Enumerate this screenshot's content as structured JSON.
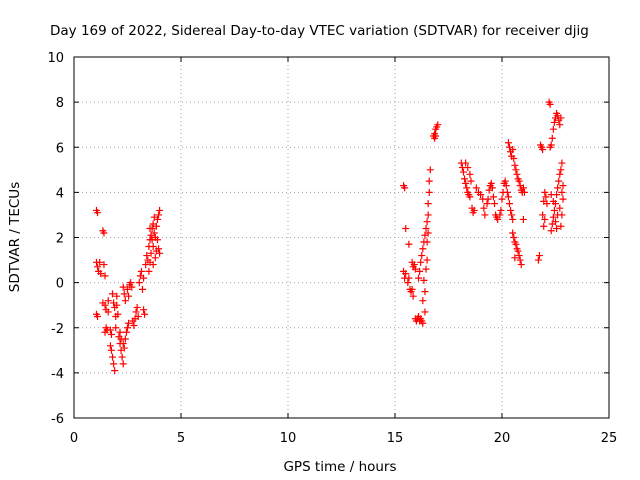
{
  "chart_data": {
    "type": "scatter",
    "title": "Day 169 of 2022, Sidereal Day-to-day VTEC variation (SDTVAR) for receiver djig",
    "xlabel": "GPS time / hours",
    "ylabel": "SDTVAR / TECUs",
    "xlim": [
      0,
      25
    ],
    "ylim": [
      -6,
      10
    ],
    "xticks": [
      "0",
      "5",
      "10",
      "15",
      "20",
      "25"
    ],
    "yticks": [
      "-6",
      "-4",
      "-2",
      "0",
      "2",
      "4",
      "6",
      "8",
      "10"
    ],
    "grid": true,
    "marker": "plus",
    "color": "#ff0000",
    "series": [
      {
        "points": [
          [
            1.05,
            3.2
          ],
          [
            1.1,
            3.1
          ],
          [
            1.05,
            0.9
          ],
          [
            1.1,
            0.7
          ],
          [
            1.15,
            0.5
          ],
          [
            1.2,
            0.9
          ],
          [
            1.25,
            0.4
          ],
          [
            1.05,
            -1.4
          ],
          [
            1.1,
            -1.5
          ],
          [
            1.35,
            2.3
          ],
          [
            1.4,
            2.2
          ],
          [
            1.4,
            0.8
          ],
          [
            1.45,
            0.3
          ],
          [
            1.35,
            -0.9
          ],
          [
            1.45,
            -1.0
          ],
          [
            1.5,
            -1.2
          ],
          [
            1.5,
            -2.0
          ],
          [
            1.55,
            -2.1
          ],
          [
            1.45,
            -2.2
          ],
          [
            1.6,
            -0.8
          ],
          [
            1.6,
            -1.3
          ],
          [
            1.7,
            -2.1
          ],
          [
            1.75,
            -2.3
          ],
          [
            1.7,
            -2.8
          ],
          [
            1.75,
            -3.0
          ],
          [
            1.8,
            -3.3
          ],
          [
            1.85,
            -3.6
          ],
          [
            1.9,
            -3.9
          ],
          [
            1.8,
            -0.5
          ],
          [
            1.85,
            -0.9
          ],
          [
            1.9,
            -1.1
          ],
          [
            1.95,
            -1.5
          ],
          [
            2.0,
            -1.0
          ],
          [
            2.05,
            -1.4
          ],
          [
            1.95,
            -2.0
          ],
          [
            2.0,
            -0.6
          ],
          [
            2.1,
            -2.4
          ],
          [
            2.15,
            -2.7
          ],
          [
            2.2,
            -3.0
          ],
          [
            2.25,
            -3.3
          ],
          [
            2.3,
            -3.6
          ],
          [
            2.15,
            -2.2
          ],
          [
            2.2,
            -2.5
          ],
          [
            2.3,
            -2.7
          ],
          [
            2.35,
            -2.9
          ],
          [
            2.4,
            -2.5
          ],
          [
            2.45,
            -2.2
          ],
          [
            2.5,
            -2.0
          ],
          [
            2.55,
            -1.8
          ],
          [
            2.3,
            -0.2
          ],
          [
            2.35,
            -0.5
          ],
          [
            2.4,
            -0.8
          ],
          [
            2.5,
            -0.3
          ],
          [
            2.55,
            -0.6
          ],
          [
            2.6,
            -0.1
          ],
          [
            2.65,
            0.0
          ],
          [
            2.7,
            -0.2
          ],
          [
            2.75,
            -1.7
          ],
          [
            2.8,
            -1.9
          ],
          [
            2.85,
            -1.6
          ],
          [
            2.9,
            -1.3
          ],
          [
            2.95,
            -1.1
          ],
          [
            3.0,
            -1.5
          ],
          [
            3.05,
            0.0
          ],
          [
            3.1,
            0.3
          ],
          [
            3.15,
            0.5
          ],
          [
            3.2,
            -0.3
          ],
          [
            3.25,
            0.2
          ],
          [
            3.25,
            -1.2
          ],
          [
            3.3,
            -1.4
          ],
          [
            3.35,
            0.8
          ],
          [
            3.4,
            1.2
          ],
          [
            3.45,
            1.0
          ],
          [
            3.5,
            0.5
          ],
          [
            3.55,
            0.9
          ],
          [
            3.5,
            1.6
          ],
          [
            3.55,
            1.9
          ],
          [
            3.6,
            2.1
          ],
          [
            3.65,
            2.4
          ],
          [
            3.7,
            2.6
          ],
          [
            3.75,
            2.2
          ],
          [
            3.6,
            1.3
          ],
          [
            3.7,
            1.6
          ],
          [
            3.8,
            2.0
          ],
          [
            3.85,
            2.5
          ],
          [
            3.9,
            2.8
          ],
          [
            3.95,
            3.0
          ],
          [
            4.0,
            3.2
          ],
          [
            3.9,
            1.9
          ],
          [
            3.95,
            1.5
          ],
          [
            4.0,
            1.3
          ],
          [
            3.75,
            2.9
          ],
          [
            3.8,
            1.1
          ],
          [
            3.85,
            1.4
          ],
          [
            3.7,
            0.8
          ],
          [
            3.65,
            1.9
          ],
          [
            3.55,
            2.4
          ],
          [
            15.4,
            4.3
          ],
          [
            15.45,
            4.2
          ],
          [
            15.5,
            2.4
          ],
          [
            15.4,
            0.5
          ],
          [
            15.45,
            0.2
          ],
          [
            15.5,
            0.4
          ],
          [
            15.6,
            0.0
          ],
          [
            15.65,
            0.2
          ],
          [
            15.7,
            -0.3
          ],
          [
            15.65,
            1.7
          ],
          [
            15.75,
            -0.4
          ],
          [
            15.8,
            -0.3
          ],
          [
            15.85,
            -0.6
          ],
          [
            15.8,
            0.9
          ],
          [
            15.85,
            0.7
          ],
          [
            15.9,
            0.8
          ],
          [
            15.95,
            0.6
          ],
          [
            15.95,
            -1.6
          ],
          [
            16.0,
            -1.7
          ],
          [
            16.05,
            -1.6
          ],
          [
            16.1,
            -1.5
          ],
          [
            16.15,
            -1.7
          ],
          [
            16.2,
            -1.6
          ],
          [
            16.25,
            -1.7
          ],
          [
            16.3,
            -1.8
          ],
          [
            16.1,
            0.2
          ],
          [
            16.15,
            0.5
          ],
          [
            16.2,
            0.9
          ],
          [
            16.25,
            1.2
          ],
          [
            16.3,
            1.5
          ],
          [
            16.35,
            1.8
          ],
          [
            16.4,
            2.1
          ],
          [
            16.45,
            2.4
          ],
          [
            16.5,
            2.7
          ],
          [
            16.35,
            0.1
          ],
          [
            16.4,
            -0.4
          ],
          [
            16.3,
            -0.8
          ],
          [
            16.4,
            -1.3
          ],
          [
            16.45,
            0.6
          ],
          [
            16.5,
            1.0
          ],
          [
            16.55,
            3.0
          ],
          [
            16.55,
            3.5
          ],
          [
            16.6,
            4.0
          ],
          [
            16.6,
            4.5
          ],
          [
            16.65,
            5.0
          ],
          [
            16.5,
            1.8
          ],
          [
            16.55,
            2.2
          ],
          [
            16.8,
            6.5
          ],
          [
            16.85,
            6.6
          ],
          [
            16.9,
            6.8
          ],
          [
            16.95,
            6.9
          ],
          [
            17.0,
            7.0
          ],
          [
            16.85,
            6.4
          ],
          [
            16.9,
            6.5
          ],
          [
            18.1,
            5.3
          ],
          [
            18.15,
            5.1
          ],
          [
            18.2,
            4.9
          ],
          [
            18.25,
            4.6
          ],
          [
            18.3,
            4.4
          ],
          [
            18.35,
            4.2
          ],
          [
            18.4,
            4.0
          ],
          [
            18.45,
            3.9
          ],
          [
            18.5,
            3.8
          ],
          [
            18.6,
            3.3
          ],
          [
            18.65,
            3.1
          ],
          [
            18.7,
            3.2
          ],
          [
            18.3,
            5.3
          ],
          [
            18.4,
            5.1
          ],
          [
            18.5,
            4.8
          ],
          [
            18.55,
            4.5
          ],
          [
            18.8,
            4.2
          ],
          [
            18.9,
            4.0
          ],
          [
            19.0,
            3.9
          ],
          [
            19.1,
            3.7
          ],
          [
            19.15,
            3.3
          ],
          [
            19.2,
            3.0
          ],
          [
            19.3,
            3.5
          ],
          [
            19.35,
            3.7
          ],
          [
            19.4,
            4.1
          ],
          [
            19.45,
            4.3
          ],
          [
            19.5,
            4.4
          ],
          [
            19.55,
            4.2
          ],
          [
            19.6,
            3.8
          ],
          [
            19.65,
            3.5
          ],
          [
            19.7,
            3.0
          ],
          [
            19.75,
            2.9
          ],
          [
            19.8,
            2.8
          ],
          [
            19.9,
            3.0
          ],
          [
            19.95,
            3.2
          ],
          [
            20.0,
            3.7
          ],
          [
            20.05,
            4.0
          ],
          [
            20.1,
            4.4
          ],
          [
            20.15,
            4.5
          ],
          [
            20.2,
            4.3
          ],
          [
            20.25,
            4.0
          ],
          [
            20.3,
            3.8
          ],
          [
            20.35,
            3.5
          ],
          [
            20.4,
            3.2
          ],
          [
            20.45,
            3.0
          ],
          [
            20.5,
            2.8
          ],
          [
            20.3,
            6.2
          ],
          [
            20.35,
            6.0
          ],
          [
            20.4,
            5.8
          ],
          [
            20.45,
            5.6
          ],
          [
            20.5,
            5.9
          ],
          [
            20.55,
            5.5
          ],
          [
            20.6,
            5.2
          ],
          [
            20.65,
            5.0
          ],
          [
            20.7,
            4.8
          ],
          [
            20.75,
            4.6
          ],
          [
            20.8,
            4.5
          ],
          [
            20.85,
            4.3
          ],
          [
            20.9,
            4.1
          ],
          [
            20.95,
            4.0
          ],
          [
            20.5,
            2.2
          ],
          [
            20.55,
            2.0
          ],
          [
            20.6,
            1.8
          ],
          [
            20.65,
            1.7
          ],
          [
            20.7,
            1.5
          ],
          [
            20.75,
            1.4
          ],
          [
            20.8,
            1.2
          ],
          [
            20.85,
            1.0
          ],
          [
            20.9,
            0.8
          ],
          [
            20.6,
            1.1
          ],
          [
            21.0,
            4.2
          ],
          [
            21.05,
            4.0
          ],
          [
            21.0,
            2.8
          ],
          [
            21.7,
            1.0
          ],
          [
            21.75,
            1.2
          ],
          [
            21.8,
            6.1
          ],
          [
            21.85,
            6.0
          ],
          [
            21.9,
            5.9
          ],
          [
            21.9,
            3.0
          ],
          [
            21.95,
            3.6
          ],
          [
            21.95,
            2.5
          ],
          [
            22.0,
            2.8
          ],
          [
            22.0,
            4.0
          ],
          [
            22.05,
            3.8
          ],
          [
            22.1,
            3.5
          ],
          [
            22.2,
            8.0
          ],
          [
            22.25,
            7.9
          ],
          [
            22.25,
            6.0
          ],
          [
            22.3,
            6.1
          ],
          [
            22.35,
            6.4
          ],
          [
            22.4,
            6.8
          ],
          [
            22.45,
            7.1
          ],
          [
            22.5,
            7.3
          ],
          [
            22.55,
            7.5
          ],
          [
            22.6,
            7.4
          ],
          [
            22.65,
            7.2
          ],
          [
            22.7,
            7.0
          ],
          [
            22.75,
            7.3
          ],
          [
            22.3,
            2.3
          ],
          [
            22.35,
            2.6
          ],
          [
            22.4,
            2.9
          ],
          [
            22.45,
            3.2
          ],
          [
            22.5,
            3.5
          ],
          [
            22.55,
            3.9
          ],
          [
            22.6,
            4.2
          ],
          [
            22.65,
            4.5
          ],
          [
            22.7,
            4.8
          ],
          [
            22.75,
            5.0
          ],
          [
            22.8,
            5.3
          ],
          [
            22.8,
            4.0
          ],
          [
            22.85,
            4.3
          ],
          [
            22.85,
            3.7
          ],
          [
            22.7,
            3.3
          ],
          [
            22.6,
            3.0
          ],
          [
            22.5,
            2.7
          ],
          [
            22.4,
            3.6
          ],
          [
            22.3,
            3.9
          ],
          [
            22.55,
            2.4
          ],
          [
            22.75,
            2.5
          ],
          [
            22.8,
            3.0
          ]
        ]
      }
    ]
  }
}
